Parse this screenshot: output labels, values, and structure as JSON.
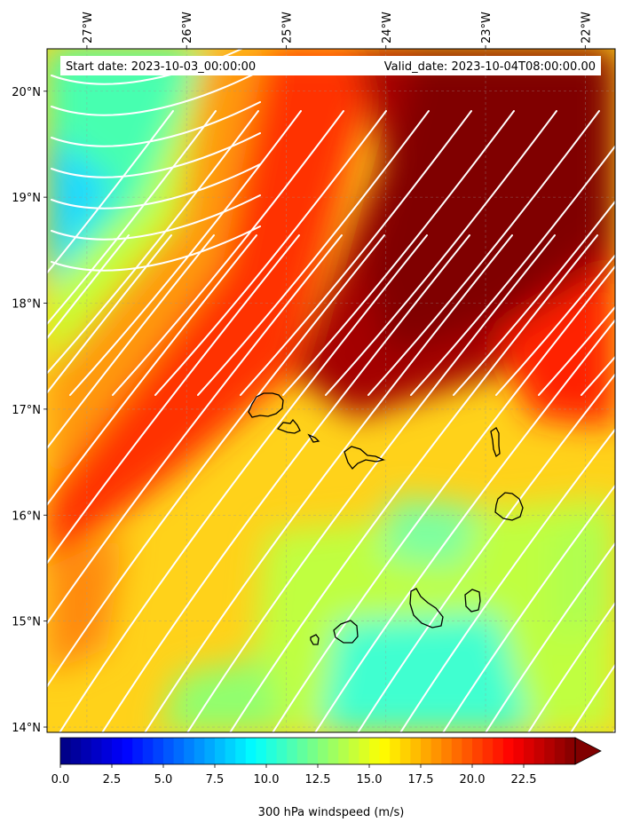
{
  "map": {
    "start_label": "Start date: 2023-10-03_00:00:00",
    "valid_label": "Valid_date: 2023-10-04T08:00:00.00",
    "lon_labels": [
      "27°W",
      "26°W",
      "25°W",
      "24°W",
      "23°W",
      "22°W"
    ],
    "lat_labels": [
      "20°N",
      "19°N",
      "18°N",
      "17°N",
      "16°N",
      "15°N",
      "14°N"
    ],
    "lon_values": [
      -27,
      -26,
      -25,
      -24,
      -23,
      -22
    ],
    "lat_values": [
      20,
      19,
      18,
      17,
      16,
      15,
      14
    ],
    "lon_range": [
      -27.4,
      -21.7
    ],
    "lat_range": [
      13.95,
      20.4
    ],
    "variable": "300 hPa windspeed",
    "units": "m/s"
  },
  "colorbar": {
    "label": "300 hPa windspeed (m/s)",
    "tick_labels": [
      "0.0",
      "2.5",
      "5.0",
      "7.5",
      "10.0",
      "12.5",
      "15.0",
      "17.5",
      "20.0",
      "22.5"
    ],
    "tick_values": [
      0,
      2.5,
      5,
      7.5,
      10,
      12.5,
      15,
      17.5,
      20,
      22.5
    ],
    "range": [
      0,
      25
    ],
    "extend": "max",
    "colormap": "jet"
  },
  "colors": {
    "coastline": "#000000",
    "streamlines": "#ffffff",
    "max_wind": "#800000"
  }
}
